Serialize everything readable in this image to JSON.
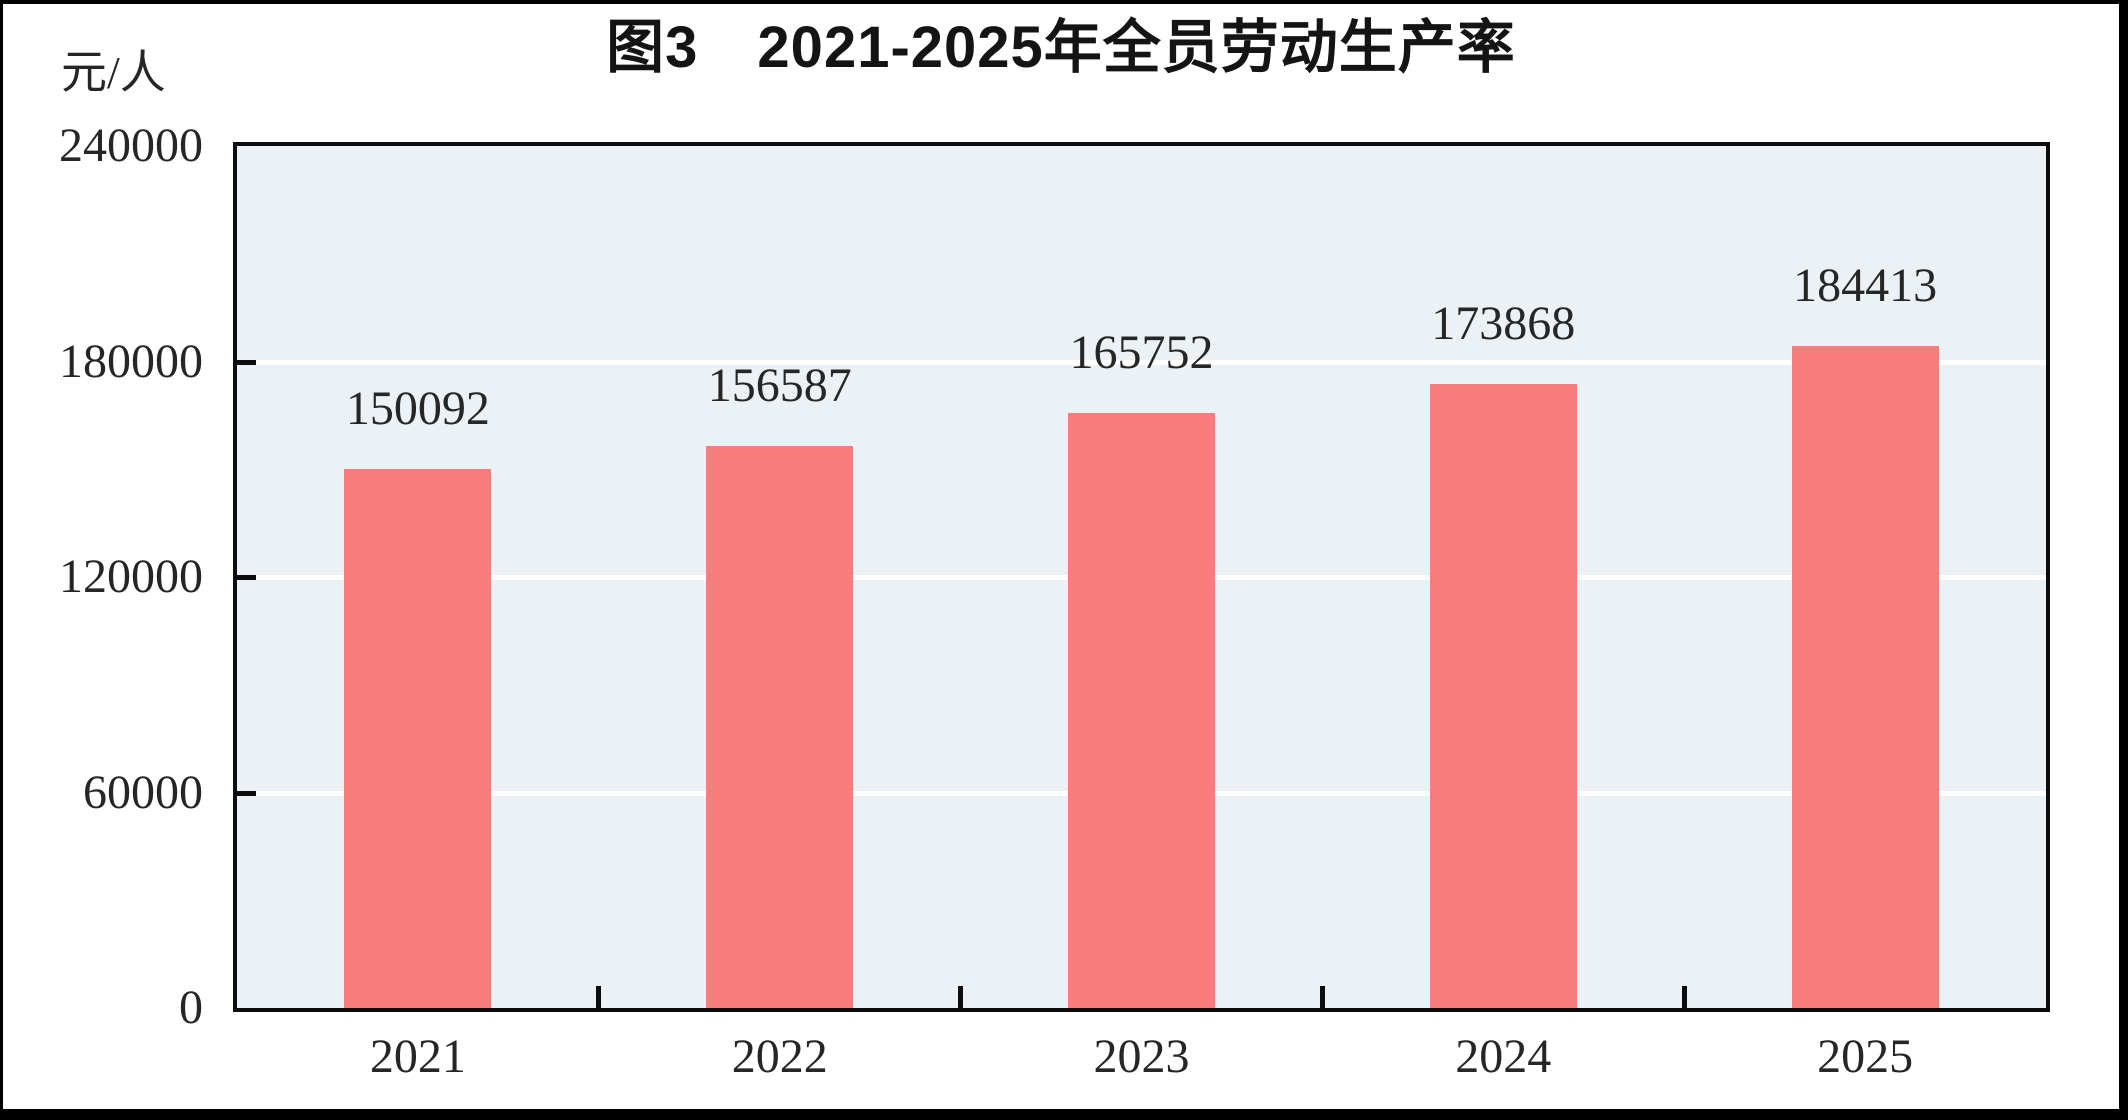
{
  "window": {
    "frame_color": "#000000",
    "background": "#ffffff"
  },
  "chart_data": {
    "type": "bar",
    "title": "图3　2021-2025年全员劳动生产率",
    "unit_label": "元/人",
    "xlabel": "",
    "ylabel": "元/人",
    "categories": [
      "2021",
      "2022",
      "2023",
      "2024",
      "2025"
    ],
    "values": [
      150092,
      156587,
      165752,
      173868,
      184413
    ],
    "value_labels": [
      "150092",
      "156587",
      "165752",
      "173868",
      "184413"
    ],
    "ylim": [
      0,
      240000
    ],
    "ytick_interval": 60000,
    "yticks_top_to_bottom": [
      "240000",
      "180000",
      "120000",
      "60000",
      "0"
    ],
    "grid": "horizontal-white-gridlines",
    "legend": "none",
    "colors": {
      "bar": "#f97d7f",
      "plot_background": "#ebf1f5",
      "gridline": "#ffffff",
      "axis": "#0d0d0d",
      "text": "#262626"
    }
  }
}
